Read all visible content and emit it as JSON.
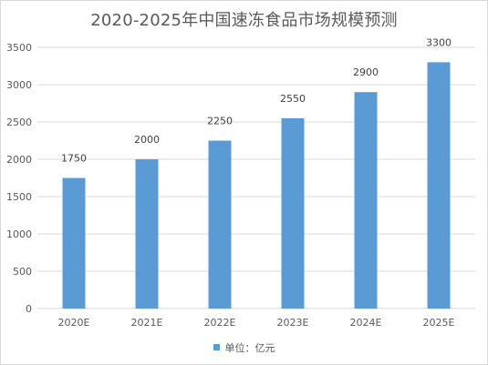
{
  "chart_data": {
    "type": "bar",
    "title": "2020-2025年中国速冻食品市场规模预测",
    "categories": [
      "2020E",
      "2021E",
      "2022E",
      "2023E",
      "2024E",
      "2025E"
    ],
    "series": [
      {
        "name": "单位：亿元",
        "values": [
          1750,
          2000,
          2250,
          2550,
          2900,
          3300
        ]
      }
    ],
    "ylim": [
      0,
      3500
    ],
    "yticks": [
      0,
      500,
      1000,
      1500,
      2000,
      2500,
      3000,
      3500
    ],
    "grid": true,
    "data_labels": true,
    "legend_position": "bottom",
    "colors": {
      "bar": "#5b9bd5",
      "grid": "#d9d9d9",
      "axis_text": "#595959",
      "title_text": "#595959"
    }
  }
}
